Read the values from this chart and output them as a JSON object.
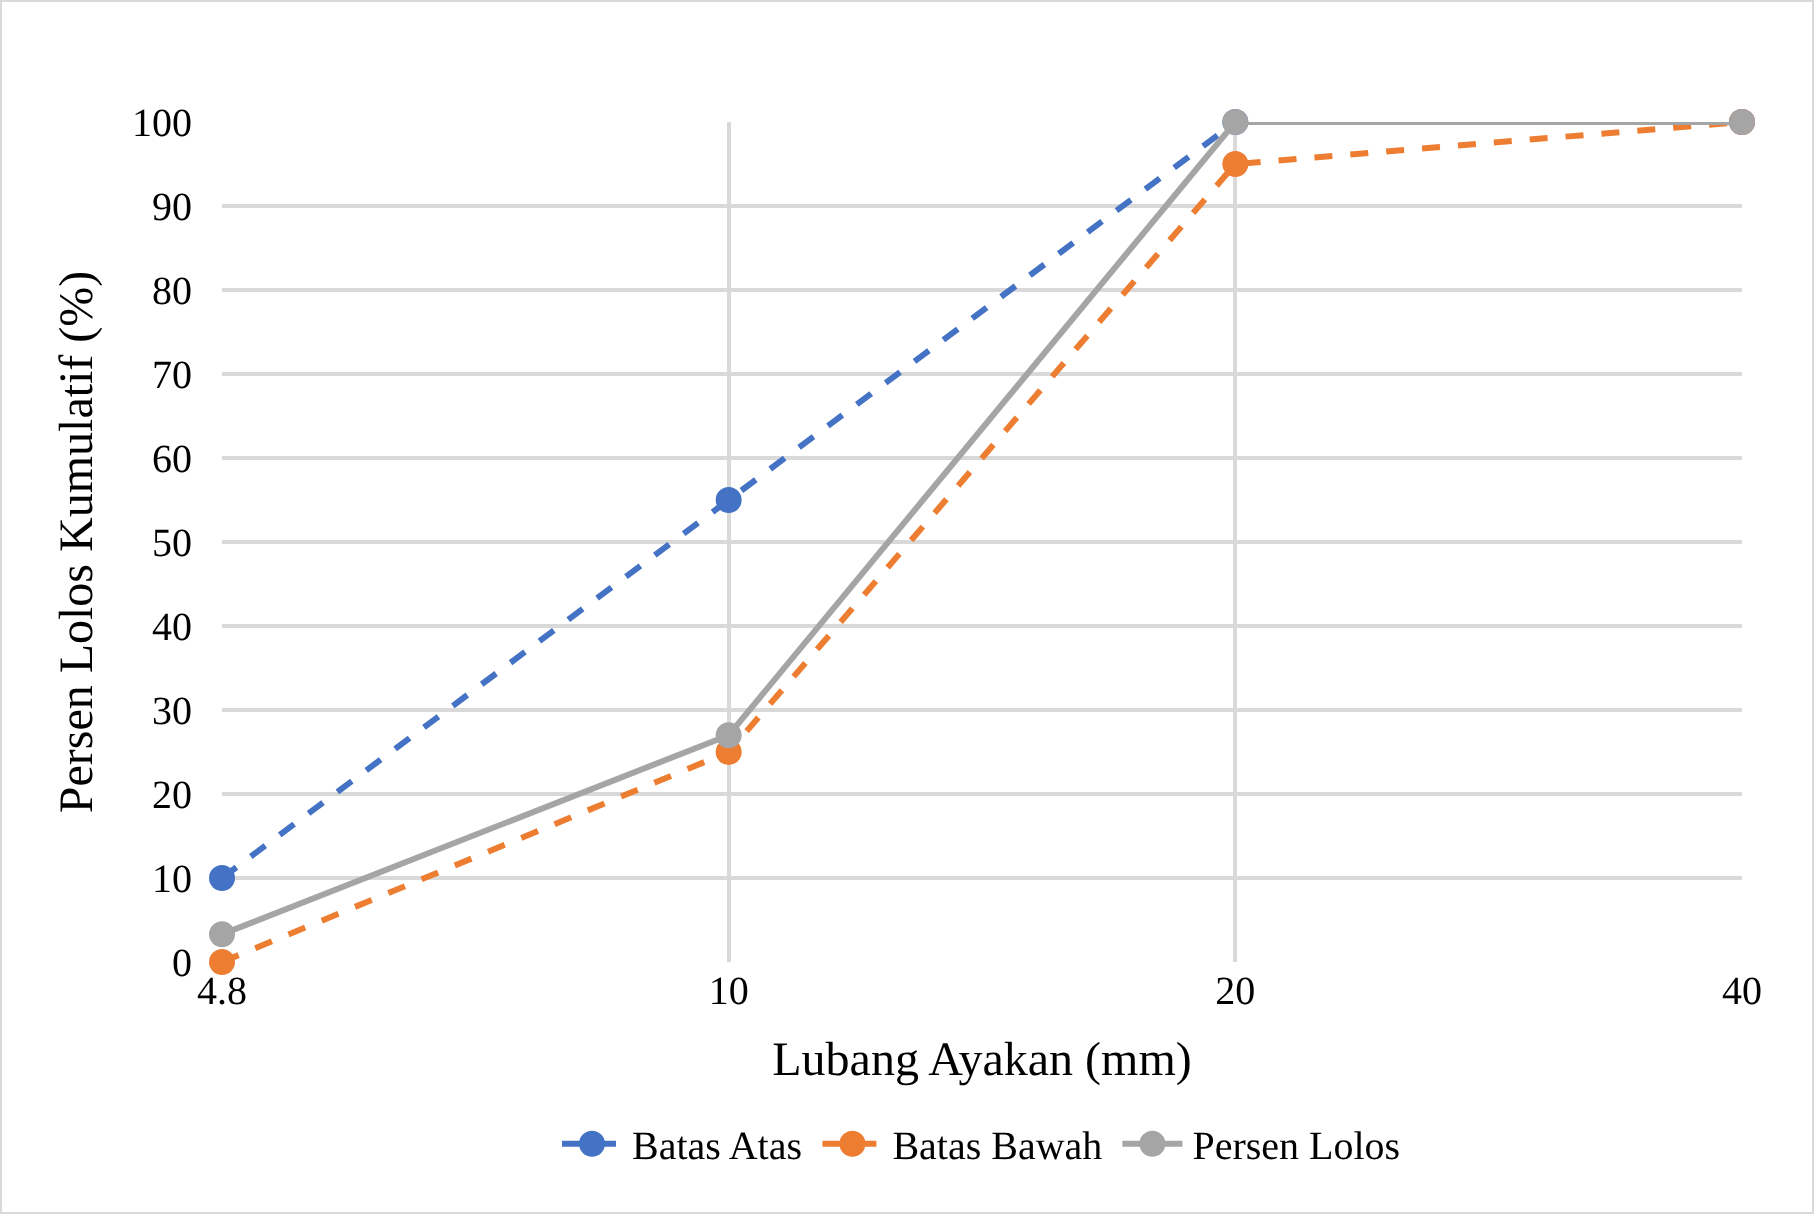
{
  "chart_data": {
    "type": "line",
    "xlabel": "Lubang Ayakan (mm)",
    "ylabel": "Persen Lolos Kumulatif (%)",
    "categories": [
      "4.8",
      "10",
      "20",
      "40"
    ],
    "series": [
      {
        "name": "Batas Atas",
        "color": "#4472c4",
        "values": [
          10,
          55,
          100,
          100
        ],
        "line_style": "dashed"
      },
      {
        "name": "Batas Bawah",
        "color": "#ed7d31",
        "values": [
          0,
          25,
          95,
          100
        ],
        "line_style": "dashed"
      },
      {
        "name": "Persen Lolos",
        "color": "#a5a5a5",
        "values": [
          3.3,
          27,
          100,
          100
        ],
        "line_style": "solid"
      }
    ],
    "ylim": [
      0,
      100
    ],
    "yticks": [
      0,
      10,
      20,
      30,
      40,
      50,
      60,
      70,
      80,
      90,
      100
    ],
    "grid": true,
    "legend": "bottom",
    "marker": "circle"
  }
}
